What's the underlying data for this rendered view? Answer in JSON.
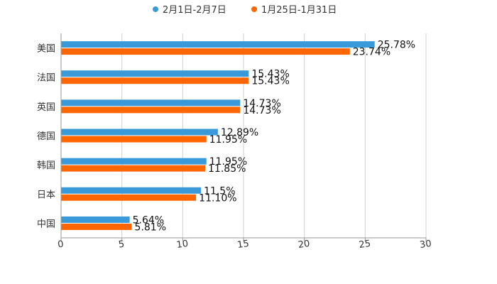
{
  "chart_data": {
    "type": "bar",
    "orientation": "horizontal",
    "title": "",
    "xlabel": "",
    "ylabel": "",
    "xlim": [
      0,
      30
    ],
    "x_ticks": [
      0,
      5,
      10,
      15,
      20,
      25,
      30
    ],
    "grid": true,
    "legend_position": "top-center",
    "categories": [
      "美国",
      "法国",
      "英国",
      "德国",
      "韩国",
      "日本",
      "中国"
    ],
    "series": [
      {
        "name": "2月1日-2月7日",
        "color": "#3a9ad9",
        "values": [
          25.78,
          15.43,
          14.73,
          12.89,
          11.95,
          11.5,
          5.64
        ],
        "labels": [
          "25.78%",
          "15.43%",
          "14.73%",
          "12.89%",
          "11.95%",
          "11.5%",
          "5.64%"
        ]
      },
      {
        "name": "1月25日-1月31日",
        "color": "#ff6600",
        "values": [
          23.74,
          15.43,
          14.73,
          11.95,
          11.85,
          11.1,
          5.81
        ],
        "labels": [
          "23.74%",
          "15.43%",
          "14.73%",
          "11.95%",
          "11.85%",
          "11.10%",
          "5.81%"
        ]
      }
    ]
  }
}
